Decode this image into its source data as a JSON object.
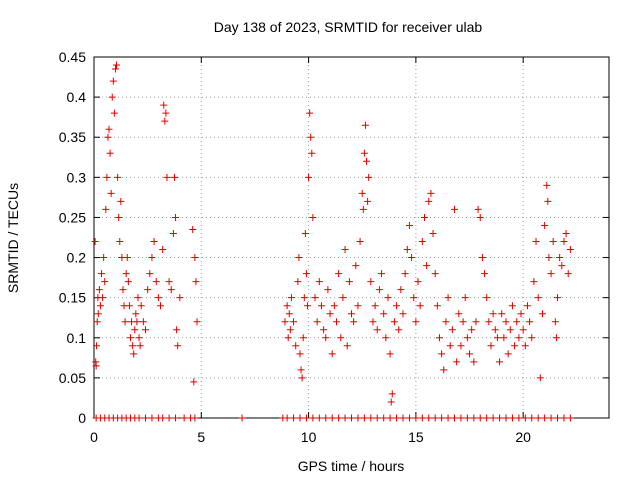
{
  "chart_data": {
    "type": "scatter",
    "title": "Day 138 of 2023, SRMTID for receiver ulab",
    "xlabel": "GPS time / hours",
    "ylabel": "SRMTID / TECUs",
    "xlim": [
      0,
      24
    ],
    "ylim": [
      0,
      0.45
    ],
    "xticks": [
      0,
      5,
      10,
      15,
      20
    ],
    "xtick_labels": [
      "0",
      "5",
      "10",
      "15",
      "20"
    ],
    "yticks": [
      0,
      0.05,
      0.1,
      0.15,
      0.2,
      0.25,
      0.3,
      0.35,
      0.4,
      0.45
    ],
    "ytick_labels": [
      "0",
      "0.05",
      "0.1",
      "0.15",
      "0.2",
      "0.25",
      "0.3",
      "0.35",
      "0.4",
      "0.45"
    ],
    "grid": true,
    "marker": "+",
    "marker_color": "#e00000",
    "series": [
      {
        "name": "SRMTID",
        "points": [
          [
            0.05,
            0.22
          ],
          [
            0.08,
            0.07
          ],
          [
            0.1,
            0.065
          ],
          [
            0.12,
            0.09
          ],
          [
            0.15,
            0.12
          ],
          [
            0.18,
            0.15
          ],
          [
            0.2,
            0.13
          ],
          [
            0.25,
            0.16
          ],
          [
            0.3,
            0.14
          ],
          [
            0.35,
            0.18
          ],
          [
            0.4,
            0.15
          ],
          [
            0.45,
            0.2
          ],
          [
            0.5,
            0.17
          ],
          [
            0.55,
            0.26
          ],
          [
            0.6,
            0.3
          ],
          [
            0.65,
            0.35
          ],
          [
            0.7,
            0.36
          ],
          [
            0.75,
            0.33
          ],
          [
            0.8,
            0.28
          ],
          [
            0.85,
            0.4
          ],
          [
            0.9,
            0.42
          ],
          [
            0.95,
            0.38
          ],
          [
            1.0,
            0.435
          ],
          [
            1.05,
            0.44
          ],
          [
            1.1,
            0.3
          ],
          [
            1.15,
            0.25
          ],
          [
            1.2,
            0.22
          ],
          [
            1.25,
            0.27
          ],
          [
            1.3,
            0.2
          ],
          [
            1.35,
            0.16
          ],
          [
            1.4,
            0.14
          ],
          [
            1.45,
            0.12
          ],
          [
            1.5,
            0.18
          ],
          [
            1.55,
            0.2
          ],
          [
            1.6,
            0.17
          ],
          [
            1.65,
            0.14
          ],
          [
            1.7,
            0.1
          ],
          [
            1.75,
            0.12
          ],
          [
            1.8,
            0.09
          ],
          [
            1.85,
            0.08
          ],
          [
            1.9,
            0.11
          ],
          [
            1.95,
            0.13
          ],
          [
            2.0,
            0.12
          ],
          [
            2.05,
            0.15
          ],
          [
            2.1,
            0.1
          ],
          [
            2.15,
            0.09
          ],
          [
            2.2,
            0.14
          ],
          [
            2.3,
            0.12
          ],
          [
            2.4,
            0.11
          ],
          [
            2.5,
            0.16
          ],
          [
            2.6,
            0.18
          ],
          [
            2.7,
            0.2
          ],
          [
            2.8,
            0.22
          ],
          [
            2.9,
            0.17
          ],
          [
            3.0,
            0.15
          ],
          [
            3.1,
            0.14
          ],
          [
            3.2,
            0.21
          ],
          [
            3.25,
            0.39
          ],
          [
            3.3,
            0.37
          ],
          [
            3.35,
            0.38
          ],
          [
            3.4,
            0.3
          ],
          [
            3.5,
            0.17
          ],
          [
            3.6,
            0.16
          ],
          [
            3.7,
            0.23
          ],
          [
            3.75,
            0.3
          ],
          [
            3.8,
            0.25
          ],
          [
            3.85,
            0.11
          ],
          [
            3.9,
            0.09
          ],
          [
            4.0,
            0.15
          ],
          [
            4.6,
            0.235
          ],
          [
            4.65,
            0.045
          ],
          [
            4.7,
            0.2
          ],
          [
            4.75,
            0.17
          ],
          [
            4.8,
            0.12
          ],
          [
            8.9,
            0.12
          ],
          [
            9.0,
            0.14
          ],
          [
            9.05,
            0.1
          ],
          [
            9.1,
            0.13
          ],
          [
            9.15,
            0.11
          ],
          [
            9.2,
            0.15
          ],
          [
            9.3,
            0.12
          ],
          [
            9.4,
            0.09
          ],
          [
            9.5,
            0.17
          ],
          [
            9.55,
            0.2
          ],
          [
            9.6,
            0.08
          ],
          [
            9.65,
            0.06
          ],
          [
            9.7,
            0.05
          ],
          [
            9.75,
            0.1
          ],
          [
            9.8,
            0.15
          ],
          [
            9.85,
            0.23
          ],
          [
            9.9,
            0.18
          ],
          [
            9.95,
            0.14
          ],
          [
            10.0,
            0.3
          ],
          [
            10.05,
            0.38
          ],
          [
            10.1,
            0.35
          ],
          [
            10.15,
            0.33
          ],
          [
            10.2,
            0.25
          ],
          [
            10.3,
            0.15
          ],
          [
            10.4,
            0.12
          ],
          [
            10.5,
            0.17
          ],
          [
            10.6,
            0.14
          ],
          [
            10.7,
            0.11
          ],
          [
            10.8,
            0.1
          ],
          [
            10.9,
            0.16
          ],
          [
            11.0,
            0.13
          ],
          [
            11.1,
            0.08
          ],
          [
            11.2,
            0.14
          ],
          [
            11.3,
            0.12
          ],
          [
            11.4,
            0.18
          ],
          [
            11.5,
            0.1
          ],
          [
            11.6,
            0.15
          ],
          [
            11.7,
            0.21
          ],
          [
            11.8,
            0.09
          ],
          [
            11.9,
            0.17
          ],
          [
            12.0,
            0.13
          ],
          [
            12.1,
            0.12
          ],
          [
            12.2,
            0.19
          ],
          [
            12.3,
            0.14
          ],
          [
            12.4,
            0.22
          ],
          [
            12.5,
            0.28
          ],
          [
            12.55,
            0.26
          ],
          [
            12.6,
            0.33
          ],
          [
            12.65,
            0.365
          ],
          [
            12.7,
            0.32
          ],
          [
            12.75,
            0.27
          ],
          [
            12.8,
            0.3
          ],
          [
            12.9,
            0.17
          ],
          [
            13.0,
            0.12
          ],
          [
            13.1,
            0.14
          ],
          [
            13.2,
            0.11
          ],
          [
            13.3,
            0.16
          ],
          [
            13.4,
            0.18
          ],
          [
            13.5,
            0.13
          ],
          [
            13.6,
            0.1
          ],
          [
            13.7,
            0.15
          ],
          [
            13.8,
            0.08
          ],
          [
            13.85,
            0.02
          ],
          [
            13.9,
            0.03
          ],
          [
            14.0,
            0.12
          ],
          [
            14.1,
            0.14
          ],
          [
            14.2,
            0.11
          ],
          [
            14.3,
            0.16
          ],
          [
            14.4,
            0.13
          ],
          [
            14.5,
            0.18
          ],
          [
            14.6,
            0.21
          ],
          [
            14.7,
            0.24
          ],
          [
            14.8,
            0.2
          ],
          [
            14.9,
            0.15
          ],
          [
            15.0,
            0.12
          ],
          [
            15.1,
            0.17
          ],
          [
            15.2,
            0.14
          ],
          [
            15.3,
            0.22
          ],
          [
            15.4,
            0.25
          ],
          [
            15.5,
            0.19
          ],
          [
            15.6,
            0.27
          ],
          [
            15.7,
            0.28
          ],
          [
            15.8,
            0.23
          ],
          [
            15.9,
            0.18
          ],
          [
            16.0,
            0.14
          ],
          [
            16.1,
            0.1
          ],
          [
            16.2,
            0.08
          ],
          [
            16.3,
            0.06
          ],
          [
            16.4,
            0.12
          ],
          [
            16.5,
            0.15
          ],
          [
            16.6,
            0.09
          ],
          [
            16.7,
            0.11
          ],
          [
            16.8,
            0.26
          ],
          [
            16.9,
            0.07
          ],
          [
            17.0,
            0.13
          ],
          [
            17.1,
            0.09
          ],
          [
            17.2,
            0.12
          ],
          [
            17.3,
            0.15
          ],
          [
            17.4,
            0.1
          ],
          [
            17.5,
            0.08
          ],
          [
            17.6,
            0.11
          ],
          [
            17.7,
            0.07
          ],
          [
            17.8,
            0.12
          ],
          [
            17.9,
            0.26
          ],
          [
            18.0,
            0.25
          ],
          [
            18.1,
            0.2
          ],
          [
            18.2,
            0.18
          ],
          [
            18.3,
            0.15
          ],
          [
            18.4,
            0.12
          ],
          [
            18.5,
            0.09
          ],
          [
            18.6,
            0.13
          ],
          [
            18.7,
            0.11
          ],
          [
            18.8,
            0.1
          ],
          [
            18.9,
            0.07
          ],
          [
            19.0,
            0.13
          ],
          [
            19.1,
            0.1
          ],
          [
            19.2,
            0.12
          ],
          [
            19.3,
            0.08
          ],
          [
            19.4,
            0.11
          ],
          [
            19.5,
            0.14
          ],
          [
            19.6,
            0.09
          ],
          [
            19.7,
            0.12
          ],
          [
            19.8,
            0.1
          ],
          [
            19.9,
            0.13
          ],
          [
            20.0,
            0.11
          ],
          [
            20.1,
            0.09
          ],
          [
            20.2,
            0.14
          ],
          [
            20.3,
            0.12
          ],
          [
            20.4,
            0.1
          ],
          [
            20.5,
            0.17
          ],
          [
            20.6,
            0.22
          ],
          [
            20.7,
            0.15
          ],
          [
            20.8,
            0.05
          ],
          [
            20.9,
            0.13
          ],
          [
            21.0,
            0.24
          ],
          [
            21.1,
            0.29
          ],
          [
            21.15,
            0.27
          ],
          [
            21.2,
            0.2
          ],
          [
            21.3,
            0.18
          ],
          [
            21.4,
            0.22
          ],
          [
            21.5,
            0.12
          ],
          [
            21.55,
            0.1
          ],
          [
            21.6,
            0.15
          ],
          [
            21.7,
            0.2
          ],
          [
            21.8,
            0.19
          ],
          [
            21.9,
            0.22
          ],
          [
            22.0,
            0.23
          ],
          [
            22.1,
            0.18
          ],
          [
            22.2,
            0.21
          ]
        ]
      },
      {
        "name": "zero baseline",
        "points": [
          [
            0.1,
            0
          ],
          [
            0.3,
            0
          ],
          [
            0.5,
            0
          ],
          [
            0.7,
            0
          ],
          [
            0.9,
            0
          ],
          [
            1.1,
            0
          ],
          [
            1.3,
            0
          ],
          [
            1.5,
            0
          ],
          [
            1.7,
            0
          ],
          [
            1.9,
            0
          ],
          [
            2.1,
            0
          ],
          [
            2.4,
            0
          ],
          [
            2.7,
            0
          ],
          [
            3.0,
            0
          ],
          [
            3.2,
            0
          ],
          [
            3.5,
            0
          ],
          [
            3.8,
            0
          ],
          [
            4.2,
            0
          ],
          [
            4.5,
            0
          ],
          [
            4.7,
            0
          ],
          [
            6.9,
            0
          ],
          [
            8.8,
            0
          ],
          [
            9.0,
            0
          ],
          [
            9.3,
            0
          ],
          [
            9.6,
            0
          ],
          [
            9.9,
            0
          ],
          [
            10.2,
            0
          ],
          [
            10.5,
            0
          ],
          [
            10.8,
            0
          ],
          [
            11.1,
            0
          ],
          [
            11.4,
            0
          ],
          [
            11.7,
            0
          ],
          [
            12.0,
            0
          ],
          [
            12.3,
            0
          ],
          [
            12.6,
            0
          ],
          [
            12.9,
            0
          ],
          [
            13.2,
            0
          ],
          [
            13.5,
            0
          ],
          [
            13.8,
            0
          ],
          [
            14.1,
            0
          ],
          [
            14.4,
            0
          ],
          [
            14.7,
            0
          ],
          [
            15.0,
            0
          ],
          [
            15.3,
            0
          ],
          [
            15.6,
            0
          ],
          [
            15.9,
            0
          ],
          [
            16.2,
            0
          ],
          [
            16.5,
            0
          ],
          [
            16.8,
            0
          ],
          [
            17.1,
            0
          ],
          [
            17.4,
            0
          ],
          [
            17.7,
            0
          ],
          [
            18.0,
            0
          ],
          [
            18.3,
            0
          ],
          [
            18.6,
            0
          ],
          [
            18.9,
            0
          ],
          [
            19.2,
            0
          ],
          [
            19.5,
            0
          ],
          [
            19.8,
            0
          ],
          [
            20.1,
            0
          ],
          [
            20.4,
            0
          ],
          [
            20.7,
            0
          ],
          [
            21.0,
            0
          ],
          [
            21.3,
            0
          ],
          [
            21.6,
            0
          ],
          [
            21.9,
            0
          ],
          [
            22.2,
            0
          ]
        ]
      }
    ]
  }
}
